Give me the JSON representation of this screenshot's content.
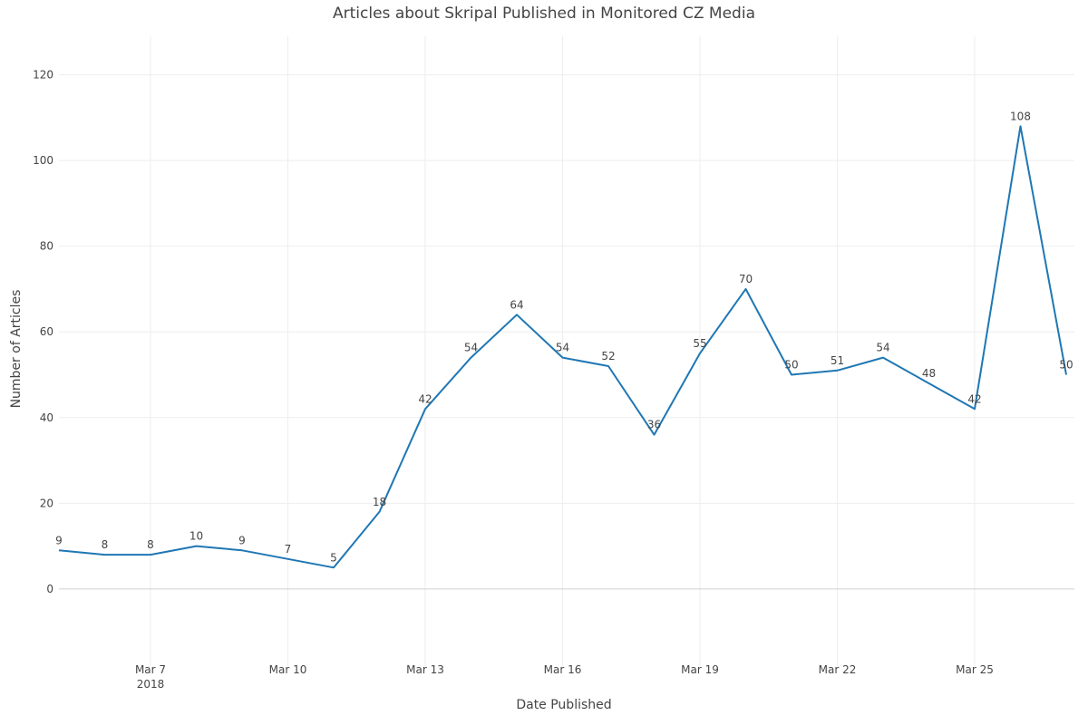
{
  "chart_data": {
    "type": "line",
    "title": "Articles about Skripal Published in Monitored CZ Media",
    "xlabel": "Date Published",
    "ylabel": "Number of Articles",
    "x": [
      "2018-03-05",
      "2018-03-06",
      "2018-03-07",
      "2018-03-08",
      "2018-03-09",
      "2018-03-10",
      "2018-03-11",
      "2018-03-12",
      "2018-03-13",
      "2018-03-14",
      "2018-03-15",
      "2018-03-16",
      "2018-03-17",
      "2018-03-18",
      "2018-03-19",
      "2018-03-20",
      "2018-03-21",
      "2018-03-22",
      "2018-03-23",
      "2018-03-24",
      "2018-03-25",
      "2018-03-26",
      "2018-03-27"
    ],
    "series": [
      {
        "values": [
          9,
          8,
          8,
          10,
          9,
          7,
          5,
          18,
          42,
          54,
          64,
          54,
          52,
          36,
          55,
          70,
          50,
          51,
          54,
          48,
          42,
          108,
          50
        ],
        "color": "#1f77b4"
      }
    ],
    "ylim": [
      -18,
      129
    ],
    "yticks": [
      0,
      20,
      40,
      60,
      80,
      100,
      120
    ],
    "xticks": [
      {
        "x": "2018-03-07",
        "label": "Mar 7",
        "sublabel": "2018"
      },
      {
        "x": "2018-03-10",
        "label": "Mar 10"
      },
      {
        "x": "2018-03-13",
        "label": "Mar 13"
      },
      {
        "x": "2018-03-16",
        "label": "Mar 16"
      },
      {
        "x": "2018-03-19",
        "label": "Mar 19"
      },
      {
        "x": "2018-03-22",
        "label": "Mar 22"
      },
      {
        "x": "2018-03-25",
        "label": "Mar 25"
      }
    ],
    "xlim": [
      "2018-03-05",
      "2018-03-27"
    ],
    "grid": true,
    "data_labels": true,
    "legend": false
  }
}
